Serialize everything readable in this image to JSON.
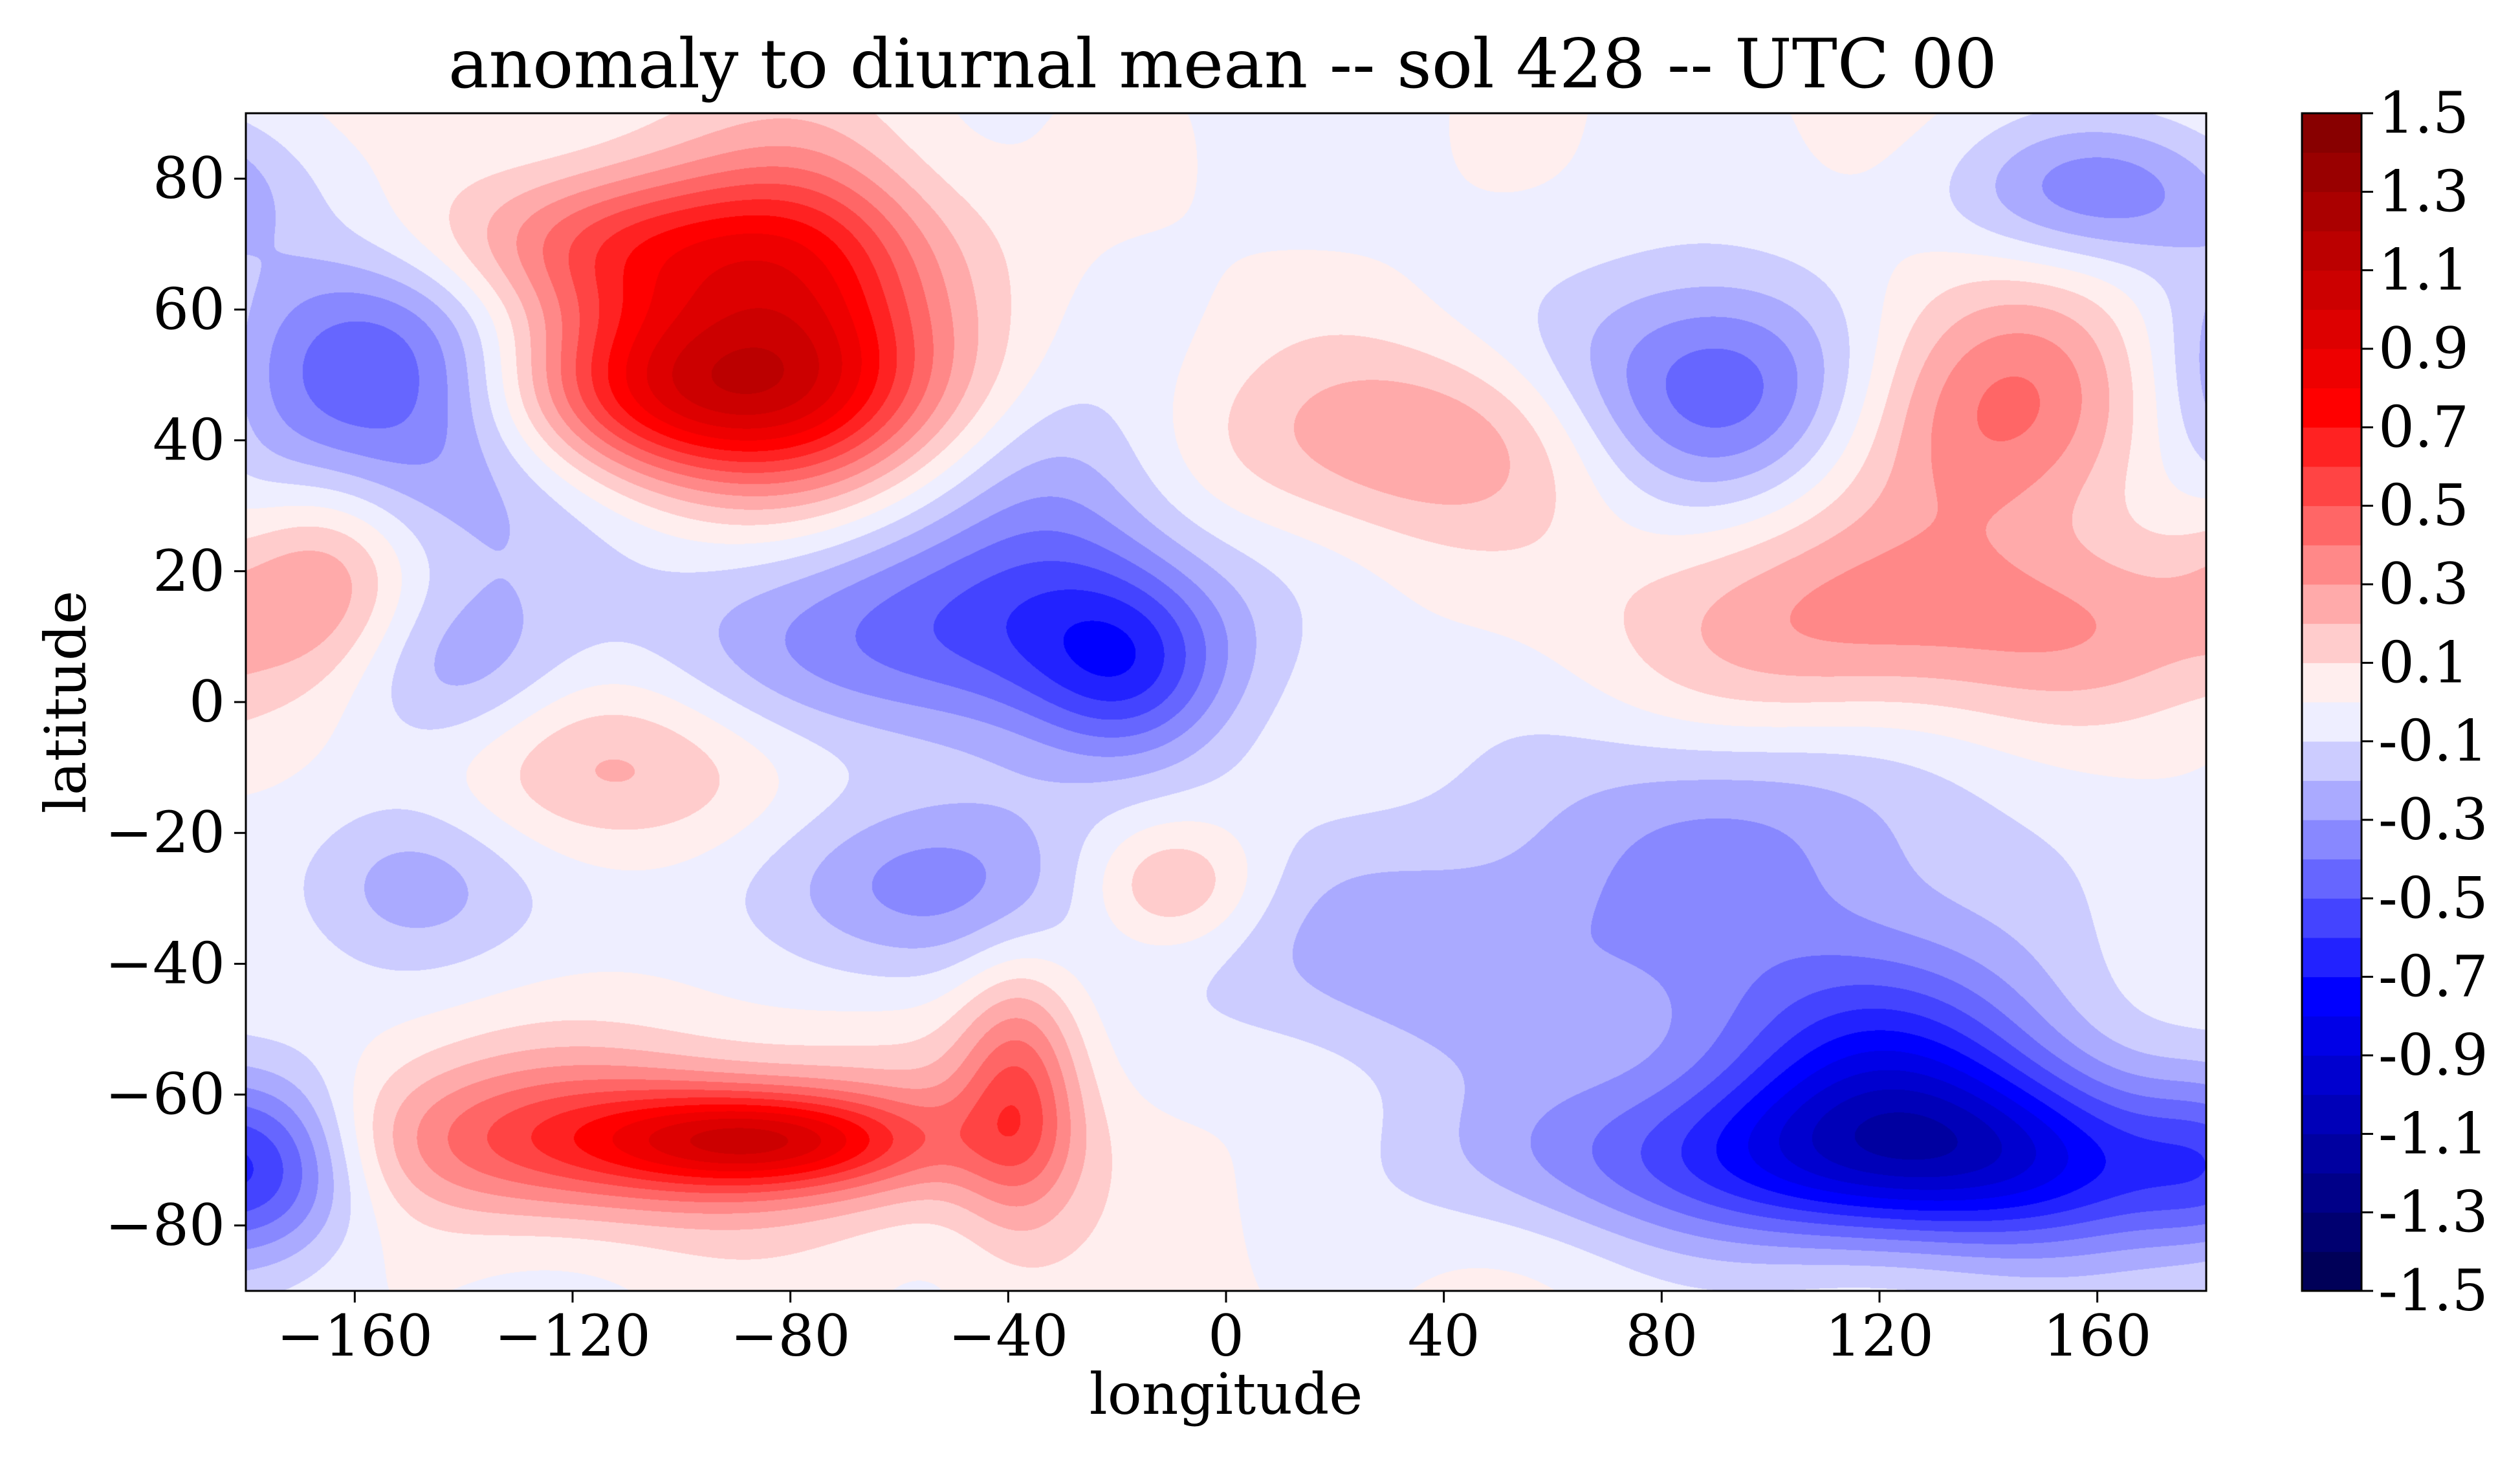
{
  "chart_data": {
    "type": "heatmap",
    "subtype": "filled-contour",
    "title": "anomaly to diurnal mean -- sol 428 -- UTC 00",
    "xlabel": "longitude",
    "ylabel": "latitude",
    "xlim": [
      -180,
      180
    ],
    "ylim": [
      -90,
      90
    ],
    "x_ticks": [
      -160,
      -120,
      -80,
      -40,
      0,
      40,
      80,
      120,
      160
    ],
    "x_tick_labels": [
      "−160",
      "−120",
      "−80",
      "−40",
      "0",
      "40",
      "80",
      "120",
      "160"
    ],
    "y_ticks": [
      80,
      60,
      40,
      20,
      0,
      -20,
      -40,
      -60,
      -80
    ],
    "y_tick_labels": [
      "80",
      "60",
      "40",
      "20",
      "0",
      "−20",
      "−40",
      "−60",
      "−80"
    ],
    "colorbar": {
      "colormap": "seismic",
      "vmin": -1.5,
      "vmax": 1.5,
      "level_step": 0.1,
      "tick_values": [
        1.5,
        1.3,
        1.1,
        0.9,
        0.7,
        0.5,
        0.3,
        0.1,
        -0.1,
        -0.3,
        -0.5,
        -0.7,
        -0.9,
        -1.1,
        -1.3,
        -1.5
      ],
      "tick_labels": [
        "1.5",
        "1.3",
        "1.1",
        "0.9",
        "0.7",
        "0.5",
        "0.3",
        "0.1",
        "-0.1",
        "-0.3",
        "-0.5",
        "-0.7",
        "-0.9",
        "-1.1",
        "-1.3",
        "-1.5"
      ]
    },
    "anomaly_features": [
      {
        "lon": -100,
        "lat": 47,
        "value": 0.75,
        "rx": 28,
        "ry": 10
      },
      {
        "lon": -95,
        "lat": 58,
        "value": 0.45,
        "rx": 25,
        "ry": 15
      },
      {
        "lon": -110,
        "lat": 70,
        "value": 0.4,
        "rx": 30,
        "ry": 8
      },
      {
        "lon": -75,
        "lat": 62,
        "value": 0.3,
        "rx": 15,
        "ry": 20
      },
      {
        "lon": -150,
        "lat": 48,
        "value": -0.6,
        "rx": 30,
        "ry": 16
      },
      {
        "lon": -165,
        "lat": 20,
        "value": 0.3,
        "rx": 12,
        "ry": 12
      },
      {
        "lon": -140,
        "lat": 5,
        "value": -0.25,
        "rx": 15,
        "ry": 10
      },
      {
        "lon": -45,
        "lat": 10,
        "value": -0.5,
        "rx": 35,
        "ry": 12
      },
      {
        "lon": -18,
        "lat": 5,
        "value": -0.3,
        "rx": 12,
        "ry": 10
      },
      {
        "lon": -30,
        "lat": 32,
        "value": -0.25,
        "rx": 15,
        "ry": 14
      },
      {
        "lon": -110,
        "lat": -10,
        "value": 0.25,
        "rx": 25,
        "ry": 10
      },
      {
        "lon": -55,
        "lat": -28,
        "value": -0.3,
        "rx": 30,
        "ry": 10
      },
      {
        "lon": -150,
        "lat": -28,
        "value": -0.3,
        "rx": 15,
        "ry": 10
      },
      {
        "lon": -115,
        "lat": -67,
        "value": 0.55,
        "rx": 45,
        "ry": 9
      },
      {
        "lon": -85,
        "lat": -67,
        "value": 0.6,
        "rx": 20,
        "ry": 5
      },
      {
        "lon": -38,
        "lat": -60,
        "value": 0.45,
        "rx": 8,
        "ry": 14
      },
      {
        "lon": -175,
        "lat": -70,
        "value": -0.4,
        "rx": 12,
        "ry": 10
      },
      {
        "lon": -10,
        "lat": -28,
        "value": 0.3,
        "rx": 12,
        "ry": 7
      },
      {
        "lon": 35,
        "lat": 40,
        "value": 0.3,
        "rx": 25,
        "ry": 10
      },
      {
        "lon": 90,
        "lat": 48,
        "value": -0.5,
        "rx": 20,
        "ry": 12
      },
      {
        "lon": 145,
        "lat": 45,
        "value": 0.5,
        "rx": 22,
        "ry": 14
      },
      {
        "lon": 160,
        "lat": 78,
        "value": -0.35,
        "rx": 20,
        "ry": 8
      },
      {
        "lon": 110,
        "lat": 12,
        "value": 0.3,
        "rx": 25,
        "ry": 12
      },
      {
        "lon": 160,
        "lat": 12,
        "value": 0.25,
        "rx": 25,
        "ry": 10
      },
      {
        "lon": 95,
        "lat": -20,
        "value": -0.3,
        "rx": 35,
        "ry": 14
      },
      {
        "lon": 120,
        "lat": -55,
        "value": -0.6,
        "rx": 25,
        "ry": 14
      },
      {
        "lon": 100,
        "lat": -70,
        "value": -0.45,
        "rx": 40,
        "ry": 9
      },
      {
        "lon": 150,
        "lat": -70,
        "value": -0.55,
        "rx": 30,
        "ry": 10
      },
      {
        "lon": 40,
        "lat": -40,
        "value": -0.25,
        "rx": 30,
        "ry": 12
      }
    ]
  }
}
